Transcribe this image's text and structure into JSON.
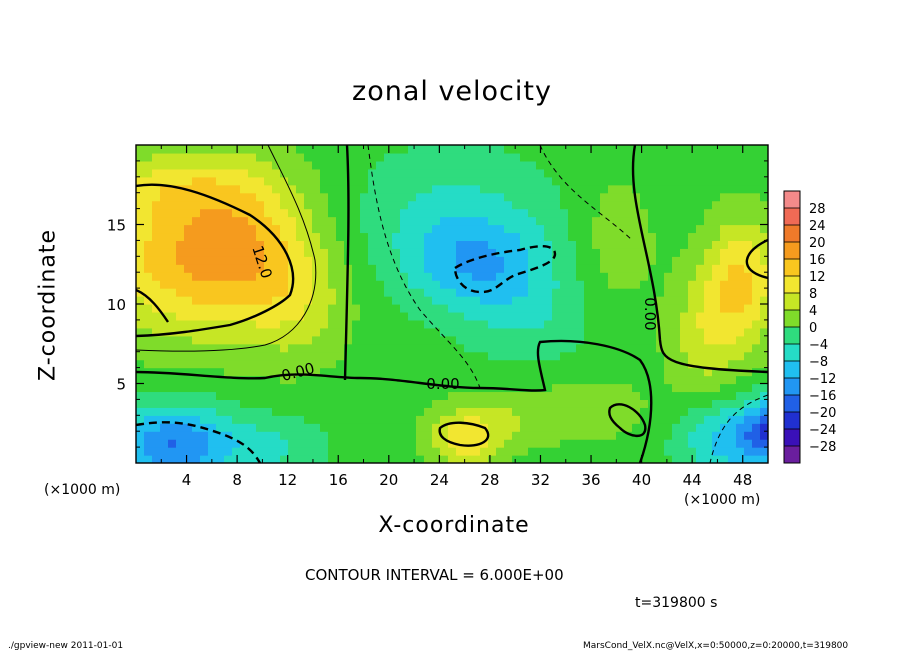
{
  "chart_data": {
    "type": "heatmap",
    "title": "zonal velocity",
    "xlabel": "X-coordinate",
    "ylabel": "Z-coordinate",
    "x_unit": "(×1000 m)",
    "xlim": [
      0,
      50
    ],
    "ylim": [
      0,
      20
    ],
    "x_ticks": [
      4,
      8,
      12,
      16,
      20,
      24,
      28,
      32,
      36,
      40,
      44,
      48
    ],
    "y_ticks": [
      5,
      10,
      15
    ],
    "colorbar": {
      "levels": [
        -28,
        -24,
        -20,
        -16,
        -12,
        -8,
        -4,
        0,
        4,
        8,
        12,
        16,
        20,
        24,
        28
      ],
      "labels": [
        "28",
        "24",
        "20",
        "16",
        "12",
        "8",
        "4",
        "0",
        "−4",
        "−8",
        "−12",
        "−16",
        "−20",
        "−24",
        "−28"
      ]
    },
    "contour_labels": [
      "12.0",
      "0.00",
      "0.00",
      "0.00"
    ],
    "blobs": [
      {
        "x": 4,
        "z": 13,
        "v": 16,
        "rx": 8,
        "rz": 5
      },
      {
        "x": 9,
        "z": 14,
        "v": 8,
        "rx": 5,
        "rz": 5
      },
      {
        "x": 3,
        "z": 17.5,
        "v": 6,
        "rx": 7,
        "rz": 2
      },
      {
        "x": 13,
        "z": 10,
        "v": 6,
        "rx": 4,
        "rz": 4
      },
      {
        "x": 3,
        "z": 1.2,
        "v": -18,
        "rx": 5,
        "rz": 2.5
      },
      {
        "x": 11,
        "z": 1,
        "v": -6,
        "rx": 4,
        "rz": 2
      },
      {
        "x": 27,
        "z": 12.5,
        "v": -12,
        "rx": 6,
        "rz": 3
      },
      {
        "x": 25,
        "z": 16,
        "v": -6,
        "rx": 8,
        "rz": 4
      },
      {
        "x": 31,
        "z": 9,
        "v": -5,
        "rx": 5,
        "rz": 3
      },
      {
        "x": 26,
        "z": 1.5,
        "v": 12,
        "rx": 3,
        "rz": 1.8
      },
      {
        "x": 30,
        "z": 3,
        "v": 5,
        "rx": 5,
        "rz": 2
      },
      {
        "x": 37,
        "z": 3.5,
        "v": 4,
        "rx": 4,
        "rz": 2
      },
      {
        "x": 38,
        "z": 14,
        "v": 5,
        "rx": 3,
        "rz": 4
      },
      {
        "x": 45,
        "z": 8,
        "v": 8,
        "rx": 3,
        "rz": 4
      },
      {
        "x": 48,
        "z": 11.5,
        "v": 14,
        "rx": 3,
        "rz": 4
      },
      {
        "x": 47,
        "z": 1.5,
        "v": -12,
        "rx": 4,
        "rz": 2.5
      },
      {
        "x": 50,
        "z": 2,
        "v": -16,
        "rx": 2,
        "rz": 2
      }
    ]
  },
  "texts": {
    "title": "zonal velocity",
    "xlabel": "X-coordinate",
    "ylabel": "Z-coordinate",
    "xunit_left": "(×1000 m)",
    "xunit_right": "(×1000 m)",
    "contour_interval": "CONTOUR INTERVAL = 6.000E+00",
    "time": "t=319800 s",
    "footer_left": "./gpview-new 2011-01-01",
    "footer_right": "MarsCond_VelX.nc@VelX,x=0:50000,z=0:20000,t=319800"
  },
  "colors": {
    "zero": "#34d134",
    "palette_neg": [
      "#34d134",
      "#2fdc7e",
      "#25dcc6",
      "#20bff0",
      "#2196f3",
      "#2060e6",
      "#2030d0",
      "#3a10b8",
      "#6a1e9e"
    ],
    "palette_pos": [
      "#34d134",
      "#7fdc2a",
      "#c6e625",
      "#f2e630",
      "#f9c61f",
      "#f59b1e",
      "#ef7a2a",
      "#f06a55",
      "#f38a8a"
    ]
  }
}
